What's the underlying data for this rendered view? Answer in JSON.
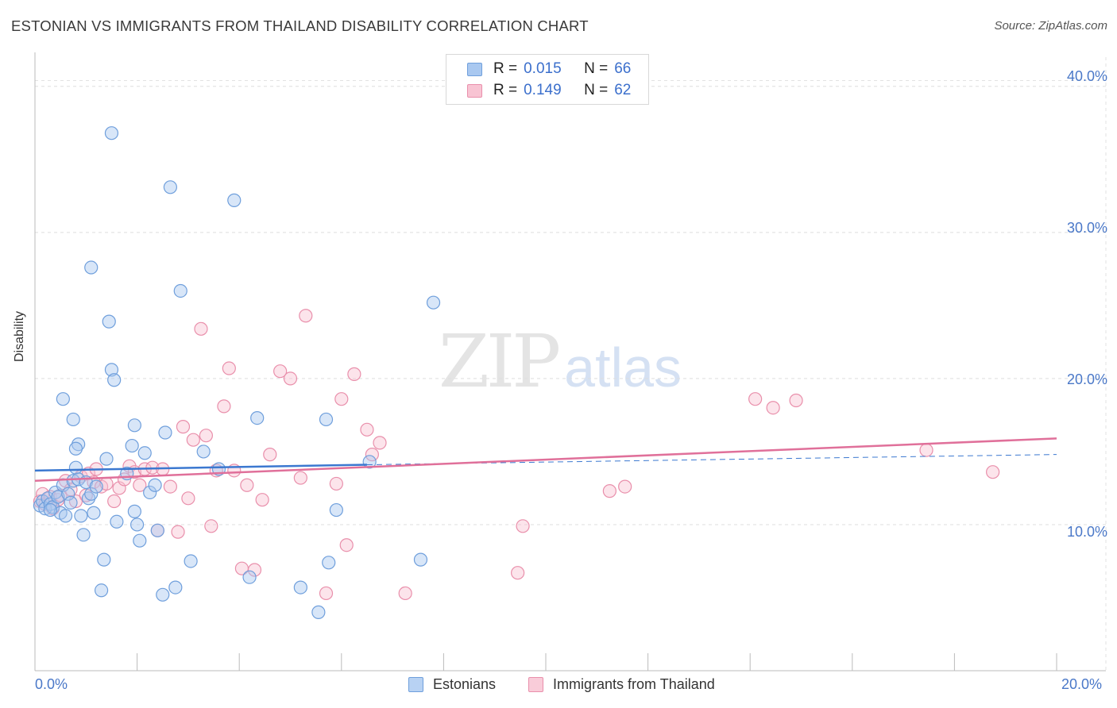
{
  "header": {
    "title": "ESTONIAN VS IMMIGRANTS FROM THAILAND DISABILITY CORRELATION CHART",
    "source": "Source: ZipAtlas.com"
  },
  "watermark": {
    "zip": "ZIP",
    "atlas": "atlas"
  },
  "legend": {
    "r_label": "R =",
    "n_label": "N =",
    "items": [
      {
        "r": "0.015",
        "n": "66",
        "color": "#a9c8f0",
        "border": "#6f9fdc"
      },
      {
        "r": "0.149",
        "n": "62",
        "color": "#f8c4d3",
        "border": "#e98fab"
      }
    ]
  },
  "bottom_legend": [
    {
      "label": "Estonians",
      "color": "#b8d2f3",
      "border": "#6f9fdc"
    },
    {
      "label": "Immigrants from Thailand",
      "color": "#f9ccd9",
      "border": "#e98fab"
    }
  ],
  "chart_data": {
    "type": "scatter",
    "title": "ESTONIAN VS IMMIGRANTS FROM THAILAND DISABILITY CORRELATION CHART",
    "xlabel": "",
    "ylabel": "Disability",
    "xlim": [
      0,
      20
    ],
    "ylim": [
      0,
      42
    ],
    "x_tick_labels": [
      "0.0%",
      "20.0%"
    ],
    "y_ticks": [
      10,
      20,
      30,
      40
    ],
    "y_tick_labels": [
      "10.0%",
      "20.0%",
      "30.0%",
      "40.0%"
    ],
    "grid": true,
    "series": [
      {
        "name": "Estonians",
        "color": "#6f9fdc",
        "fill": "#a9c8f0",
        "r": 0.015,
        "n": 66,
        "trend": {
          "x": [
            0,
            6.5
          ],
          "y": [
            13.7,
            14.1
          ],
          "dashed_to": [
            20,
            14.8
          ],
          "color": "#3b78d0"
        },
        "points": [
          [
            0.1,
            11.3
          ],
          [
            0.15,
            11.6
          ],
          [
            0.2,
            11.1
          ],
          [
            0.25,
            11.8
          ],
          [
            0.3,
            11.4
          ],
          [
            0.35,
            11.2
          ],
          [
            0.4,
            12.2
          ],
          [
            0.45,
            11.9
          ],
          [
            0.5,
            10.8
          ],
          [
            0.55,
            12.7
          ],
          [
            0.6,
            10.6
          ],
          [
            0.65,
            12.1
          ],
          [
            0.7,
            11.5
          ],
          [
            0.75,
            13.0
          ],
          [
            0.8,
            13.9
          ],
          [
            0.85,
            13.1
          ],
          [
            0.9,
            10.6
          ],
          [
            0.95,
            9.3
          ],
          [
            1.0,
            12.9
          ],
          [
            1.05,
            11.8
          ],
          [
            1.1,
            12.1
          ],
          [
            1.15,
            10.8
          ],
          [
            1.2,
            12.6
          ],
          [
            1.3,
            5.5
          ],
          [
            1.35,
            7.6
          ],
          [
            1.4,
            14.5
          ],
          [
            1.45,
            23.9
          ],
          [
            1.5,
            36.8
          ],
          [
            1.5,
            20.6
          ],
          [
            1.55,
            19.9
          ],
          [
            1.6,
            10.2
          ],
          [
            1.8,
            13.5
          ],
          [
            1.9,
            15.4
          ],
          [
            1.95,
            16.8
          ],
          [
            1.95,
            10.9
          ],
          [
            2.0,
            10.0
          ],
          [
            2.05,
            8.9
          ],
          [
            2.15,
            14.9
          ],
          [
            2.25,
            12.2
          ],
          [
            2.35,
            12.7
          ],
          [
            2.4,
            9.6
          ],
          [
            2.5,
            5.2
          ],
          [
            2.55,
            16.3
          ],
          [
            2.65,
            33.1
          ],
          [
            2.75,
            5.7
          ],
          [
            2.85,
            26.0
          ],
          [
            3.05,
            7.5
          ],
          [
            3.3,
            15.0
          ],
          [
            3.6,
            13.8
          ],
          [
            3.9,
            32.2
          ],
          [
            4.2,
            6.4
          ],
          [
            4.35,
            17.3
          ],
          [
            0.55,
            18.6
          ],
          [
            0.75,
            17.2
          ],
          [
            0.85,
            15.5
          ],
          [
            0.8,
            15.2
          ],
          [
            1.1,
            27.6
          ],
          [
            5.2,
            5.7
          ],
          [
            5.55,
            4.0
          ],
          [
            5.7,
            17.2
          ],
          [
            5.75,
            7.4
          ],
          [
            5.9,
            11.0
          ],
          [
            6.55,
            14.3
          ],
          [
            7.55,
            7.6
          ],
          [
            7.8,
            25.2
          ],
          [
            0.3,
            11.0
          ]
        ]
      },
      {
        "name": "Immigrants from Thailand",
        "color": "#e98fab",
        "fill": "#f8c4d3",
        "r": 0.149,
        "n": 62,
        "trend": {
          "x": [
            0,
            20
          ],
          "y": [
            13.0,
            15.9
          ],
          "color": "#e0709a"
        },
        "points": [
          [
            0.1,
            11.6
          ],
          [
            0.15,
            12.1
          ],
          [
            0.2,
            11.4
          ],
          [
            0.3,
            11.9
          ],
          [
            0.35,
            11.1
          ],
          [
            0.45,
            11.7
          ],
          [
            0.5,
            12.0
          ],
          [
            0.6,
            13.0
          ],
          [
            0.7,
            12.4
          ],
          [
            0.8,
            11.6
          ],
          [
            0.9,
            13.3
          ],
          [
            1.0,
            12.0
          ],
          [
            1.05,
            13.5
          ],
          [
            1.15,
            12.9
          ],
          [
            1.2,
            13.8
          ],
          [
            1.3,
            12.6
          ],
          [
            1.4,
            12.8
          ],
          [
            1.55,
            11.6
          ],
          [
            1.65,
            12.5
          ],
          [
            1.75,
            13.1
          ],
          [
            1.85,
            14.0
          ],
          [
            1.95,
            13.6
          ],
          [
            2.05,
            12.7
          ],
          [
            2.15,
            13.8
          ],
          [
            2.3,
            13.9
          ],
          [
            2.4,
            9.6
          ],
          [
            2.5,
            13.8
          ],
          [
            2.65,
            12.6
          ],
          [
            2.8,
            9.5
          ],
          [
            2.9,
            16.7
          ],
          [
            3.0,
            11.8
          ],
          [
            3.1,
            15.8
          ],
          [
            3.25,
            23.4
          ],
          [
            3.35,
            16.1
          ],
          [
            3.45,
            9.9
          ],
          [
            3.55,
            13.7
          ],
          [
            3.7,
            18.1
          ],
          [
            3.8,
            20.7
          ],
          [
            3.9,
            13.7
          ],
          [
            4.05,
            7.0
          ],
          [
            4.15,
            12.7
          ],
          [
            4.3,
            6.9
          ],
          [
            4.45,
            11.7
          ],
          [
            4.6,
            14.8
          ],
          [
            4.8,
            20.5
          ],
          [
            5.0,
            20.0
          ],
          [
            5.2,
            13.2
          ],
          [
            5.3,
            24.3
          ],
          [
            5.7,
            5.3
          ],
          [
            5.9,
            12.8
          ],
          [
            6.0,
            18.6
          ],
          [
            6.1,
            8.6
          ],
          [
            6.25,
            20.3
          ],
          [
            6.5,
            16.5
          ],
          [
            6.6,
            14.8
          ],
          [
            6.75,
            15.6
          ],
          [
            7.25,
            5.3
          ],
          [
            9.45,
            6.7
          ],
          [
            9.55,
            9.9
          ],
          [
            11.25,
            12.3
          ],
          [
            11.55,
            12.6
          ],
          [
            14.1,
            18.6
          ]
        ]
      }
    ],
    "extra_pink_points": [
      [
        14.45,
        18.0
      ],
      [
        14.9,
        18.5
      ],
      [
        17.45,
        15.1
      ],
      [
        18.75,
        13.6
      ]
    ]
  }
}
